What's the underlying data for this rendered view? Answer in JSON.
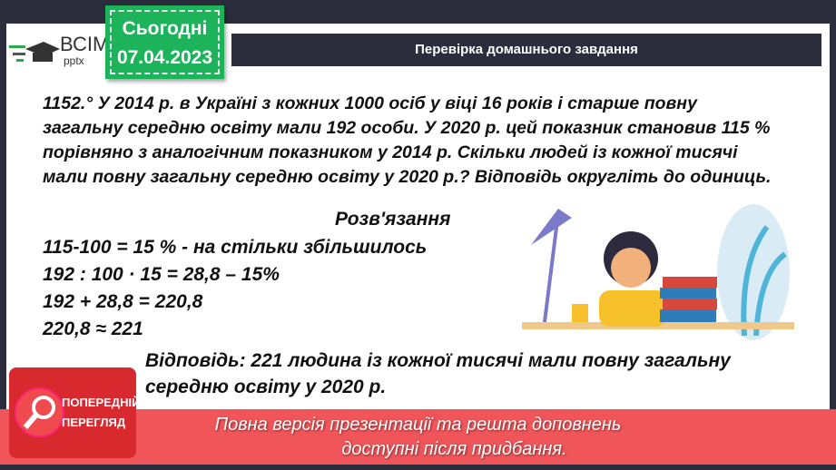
{
  "logo": {
    "title": "ВСІМ",
    "subtitle": "pptx"
  },
  "date_badge": {
    "label": "Сьогодні",
    "date": "07.04.2023"
  },
  "header": {
    "title": "Перевірка домашнього завдання"
  },
  "problem": {
    "lines": [
      "1152.° У 2014 р. в Україні з кожних 1000 осіб у віці 16 років і старше повну",
      "загальну середню освіту мали 192 особи. У 2020 р. цей показник становив 115 %",
      "порівняно з аналогічним показником у 2014 р. Скільки людей із кожної тисячі",
      "мали повну загальну середню освіту у 2020 р.? Відповідь округліть до одиниць."
    ]
  },
  "solution": {
    "heading": "Розв'язання",
    "lines": [
      "115-100 = 15 % - на стільки збільшилось",
      "192 : 100 · 15 = 28,8 – 15%",
      "192 + 28,8 = 220,8",
      "220,8 ≈ 221"
    ],
    "answer_lines": [
      "Відповідь: 221 людина із кожної тисячі мали повну загальну",
      "середню освіту у 2020 р."
    ]
  },
  "preview_badge": {
    "line1": "ПОПЕРЕДНІЙ",
    "line2": "ПЕРЕГЛЯД"
  },
  "banner": {
    "line1": "Повна версія презентації та решта доповнень",
    "line2": "доступні після придбання."
  },
  "colors": {
    "frame": "#2b2d3c",
    "date_green": "#1db35a",
    "banner": "#f0555a",
    "preview": "#d8292f"
  }
}
